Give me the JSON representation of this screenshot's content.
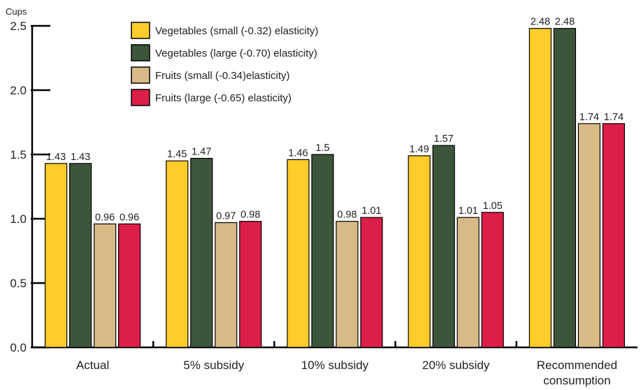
{
  "chart_data": {
    "type": "bar",
    "unit_label": "Cups",
    "categories": [
      "Actual",
      "5% subsidy",
      "10% subsidy",
      "20% subsidy",
      "Recommended|consumption"
    ],
    "series": [
      {
        "name": "Vegetables (small (-0.32) elasticity)",
        "color": "#FFCC2A",
        "values": [
          1.43,
          1.45,
          1.46,
          1.49,
          2.48
        ],
        "labels": [
          "1.43",
          "1.45",
          "1.46",
          "1.49",
          "2.48"
        ]
      },
      {
        "name": "Vegetables (large (-0.70) elasticity)",
        "color": "#3D553B",
        "values": [
          1.43,
          1.47,
          1.5,
          1.57,
          2.48
        ],
        "labels": [
          "1.43",
          "1.47",
          "1.5",
          "1.57",
          "2.48"
        ]
      },
      {
        "name": "Fruits (small (-0.34)elasticity)",
        "color": "#D8BA88",
        "values": [
          0.96,
          0.97,
          0.98,
          1.01,
          1.74
        ],
        "labels": [
          "0.96",
          "0.97",
          "0.98",
          "1.01",
          "1.74"
        ]
      },
      {
        "name": "Fruits (large (-0.65) elasticity)",
        "color": "#DC1E48",
        "values": [
          0.96,
          0.98,
          1.01,
          1.05,
          1.74
        ],
        "labels": [
          "0.96",
          "0.98",
          "1.01",
          "1.05",
          "1.74"
        ]
      }
    ],
    "yticks": [
      "0.0",
      "0.5",
      "1.0",
      "1.5",
      "2.0",
      "2.5"
    ],
    "ylim": [
      0,
      2.5
    ],
    "grid": false,
    "legend_position": "top-center"
  }
}
